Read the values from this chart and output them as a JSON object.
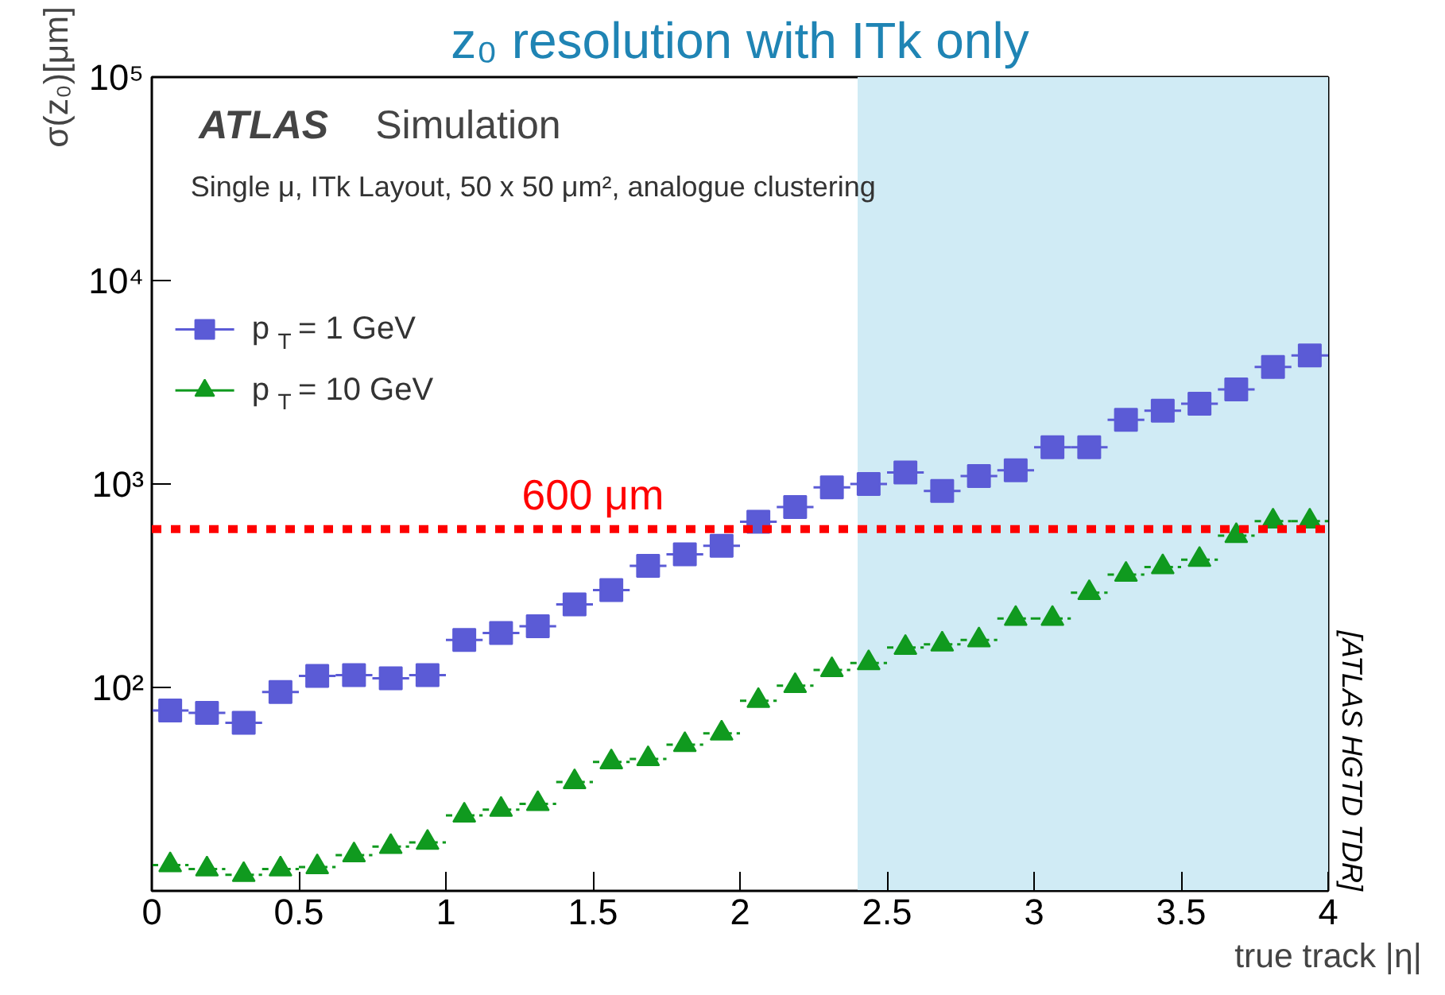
{
  "chart_data": {
    "type": "scatter",
    "title": "z₀ resolution with ITk only",
    "xlabel": "true track |η|",
    "ylabel": "σ(z₀)[μm]",
    "annotations": [
      "ATLAS",
      "Simulation",
      "Single μ, ITk Layout, 50 x 50 μm², analogue clustering",
      "[ATLAS HGTD TDR]"
    ],
    "x": [
      0.0625,
      0.1875,
      0.3125,
      0.4375,
      0.5625,
      0.6875,
      0.8125,
      0.9375,
      1.0625,
      1.1875,
      1.3125,
      1.4375,
      1.5625,
      1.6875,
      1.8125,
      1.9375,
      2.0625,
      2.1875,
      2.3125,
      2.4375,
      2.5625,
      2.6875,
      2.8125,
      2.9375,
      3.0625,
      3.1875,
      3.3125,
      3.4375,
      3.5625,
      3.6875,
      3.8125,
      3.9375
    ],
    "series": [
      {
        "name": "p$_{T}$ = 1 GeV",
        "color": "#5b5bd6",
        "marker": "square",
        "values": [
          77,
          75,
          67,
          95,
          114,
          115,
          111,
          115,
          171,
          185,
          200,
          256,
          301,
          396,
          451,
          497,
          652,
          771,
          962,
          1000,
          1140,
          925,
          1095,
          1168,
          1515,
          1515,
          2066,
          2294,
          2480,
          2916,
          3756,
          4280
        ],
        "xerrors": [
          0.0625,
          0.0625,
          0.0625,
          0.0625,
          0.0625,
          0.0625,
          0.0625,
          0.0625,
          0.0625,
          0.0625,
          0.0625,
          0.0625,
          0.0625,
          0.0625,
          0.0625,
          0.0625,
          0.0625,
          0.0625,
          0.0625,
          0.0625,
          0.0625,
          0.0625,
          0.0625,
          0.0625,
          0.0625,
          0.0625,
          0.0625,
          0.0625,
          0.0625,
          0.0625,
          0.0625,
          0.0625
        ]
      },
      {
        "name": "p$_{T}$ = 10 GeV",
        "color": "#109a1f",
        "marker": "triangle",
        "line_style": "dashed",
        "values": [
          13.4,
          12.8,
          12.0,
          12.8,
          13.1,
          15.0,
          16.5,
          17.3,
          23.5,
          25.1,
          26.8,
          34.3,
          43.0,
          44.5,
          52.3,
          59.5,
          86,
          102,
          122,
          132,
          157,
          163,
          171,
          218,
          218,
          292,
          359,
          391,
          425,
          557,
          656,
          656
        ],
        "xerrors": [
          0.0625,
          0.0625,
          0.0625,
          0.0625,
          0.0625,
          0.0625,
          0.0625,
          0.0625,
          0.0625,
          0.0625,
          0.0625,
          0.0625,
          0.0625,
          0.0625,
          0.0625,
          0.0625,
          0.0625,
          0.0625,
          0.0625,
          0.0625,
          0.0625,
          0.0625,
          0.0625,
          0.0625,
          0.0625,
          0.0625,
          0.0625,
          0.0625,
          0.0625,
          0.0625,
          0.0625,
          0.0625
        ]
      }
    ],
    "log": "y",
    "xlim": [
      0,
      4
    ],
    "ylim": [
      10,
      100000
    ],
    "xticks": [
      0,
      0.5,
      1,
      1.5,
      2,
      2.5,
      3,
      3.5,
      4
    ],
    "yticks": [
      {
        "value": 100,
        "label": "10²"
      },
      {
        "value": 1000,
        "label": "10³"
      },
      {
        "value": 10000,
        "label": "10⁴"
      },
      {
        "value": 100000,
        "label": "10⁵"
      }
    ],
    "ref_lines": [
      {
        "axis": "y",
        "value": 600,
        "label": "600 μm",
        "color": "#ff0000",
        "line_style": "dotted"
      }
    ],
    "bands": [
      {
        "axis": "x",
        "from": 2.4,
        "to": 4,
        "color": "#d0ebf5"
      }
    ],
    "legend": "top left",
    "grid": false
  }
}
